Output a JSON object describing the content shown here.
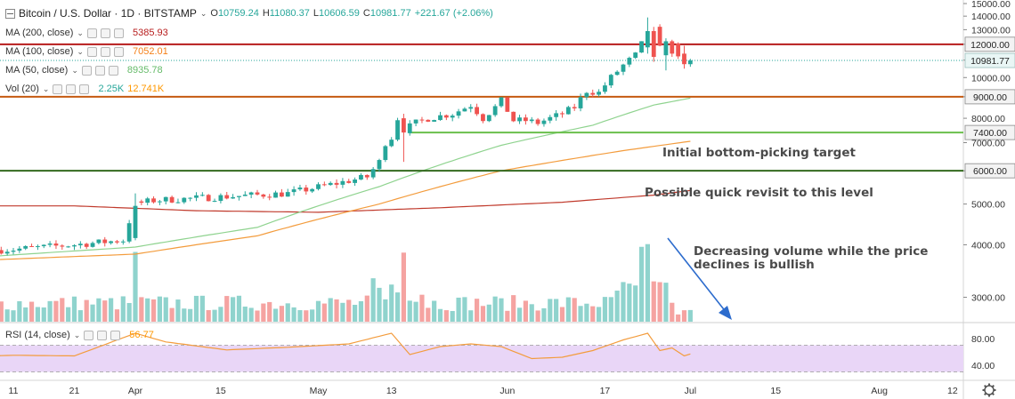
{
  "header": {
    "symbol": "Bitcoin / U.S. Dollar · 1D · BITSTAMP",
    "chevron": "⌄",
    "ohlc": {
      "open_label": "O",
      "open": "10759.24",
      "high_label": "H",
      "high": "11080.37",
      "low_label": "L",
      "low": "10606.59",
      "close_label": "C",
      "close": "10981.77",
      "change": "+221.67 (+2.06%)"
    }
  },
  "indicators": [
    {
      "label": "MA (200, close)",
      "value": "5385.93",
      "color": "#b71c1c"
    },
    {
      "label": "MA (100, close)",
      "value": "7052.01",
      "color": "#f57f17"
    },
    {
      "label": "MA (50, close)",
      "value": "8935.78",
      "color": "#66bb6a"
    }
  ],
  "volume_legend": {
    "label": "Vol (20)",
    "value1": "2.25K",
    "value1_color": "#26a69a",
    "value2": "12.741K",
    "value2_color": "#ff9800"
  },
  "rsi_legend": {
    "label": "RSI (14, close)",
    "value": "56.77",
    "color": "#ff9800"
  },
  "annotations": {
    "target_9000": "Initial bottom-picking target",
    "revisit_7400": "Possible quick revisit to this level",
    "volume_note": "Decreasing volume while the price declines is bullish"
  },
  "colors": {
    "up": "#26a69a",
    "down": "#ef5350",
    "vol_up": "#8fd3cd",
    "vol_down": "#f5a3a1",
    "line_12000": "#b71c1c",
    "line_9000": "#c55a11",
    "line_7400": "#6abf4b",
    "line_6000": "#33691e",
    "last_price": "#26a69a",
    "arrow": "#2d6ccd",
    "rsi_band": "#e9d6f7"
  },
  "chart_data": {
    "type": "candlestick",
    "y_axis": {
      "ticks": [
        "15000.00",
        "14000.00",
        "13000.00",
        "12000.00",
        "11000.00",
        "10000.00",
        "9000.00",
        "8000.00",
        "7000.00",
        "6000.00",
        "5000.00",
        "4000.00",
        "3000.00"
      ],
      "range": [
        2650,
        15000
      ],
      "scale": "log"
    },
    "x_axis": {
      "ticks": [
        "11",
        "21",
        "Apr",
        "15",
        "May",
        "13",
        "Jun",
        "17",
        "Jul",
        "15",
        "Aug",
        "12"
      ],
      "tick_days": [
        -20,
        -10,
        0,
        14,
        30,
        42,
        61,
        77,
        91,
        105,
        122,
        134
      ]
    },
    "levels": [
      {
        "value": 12000,
        "label": "12000.00",
        "role": "line_12000"
      },
      {
        "value": 9000,
        "label": "9000.00",
        "role": "line_9000"
      },
      {
        "value": 7400,
        "label": "7400.00",
        "role": "line_7400"
      },
      {
        "value": 6000,
        "label": "6000.00",
        "role": "line_6000"
      }
    ],
    "last_price": {
      "value": 10981.77,
      "label": "10981.77"
    },
    "price_path": [
      [
        -30,
        3850
      ],
      [
        -20,
        3900
      ],
      [
        -10,
        4000
      ],
      [
        -2,
        4100
      ],
      [
        0,
        5000
      ],
      [
        3,
        5100
      ],
      [
        14,
        5200
      ],
      [
        25,
        5300
      ],
      [
        33,
        5600
      ],
      [
        38,
        5800
      ],
      [
        40,
        6300
      ],
      [
        41,
        7000
      ],
      [
        42,
        7200
      ],
      [
        43,
        8000
      ],
      [
        44,
        7500
      ],
      [
        46,
        7800
      ],
      [
        48,
        8000
      ],
      [
        52,
        8200
      ],
      [
        55,
        8600
      ],
      [
        57,
        8000
      ],
      [
        59,
        8500
      ],
      [
        60,
        8800
      ],
      [
        62,
        7900
      ],
      [
        64,
        7900
      ],
      [
        66,
        7800
      ],
      [
        68,
        8000
      ],
      [
        70,
        8200
      ],
      [
        72,
        8500
      ],
      [
        74,
        9300
      ],
      [
        76,
        9200
      ],
      [
        78,
        10000
      ],
      [
        80,
        10700
      ],
      [
        82,
        11300
      ],
      [
        84,
        12700
      ],
      [
        85,
        13000
      ],
      [
        86,
        11700
      ],
      [
        87,
        12400
      ],
      [
        88,
        11900
      ],
      [
        89,
        11400
      ],
      [
        90,
        10700
      ],
      [
        91,
        10982
      ]
    ],
    "highlight_candles": [
      {
        "day": 0,
        "open": 4150,
        "high": 5300,
        "low": 4100,
        "close": 4950
      },
      {
        "day": 44,
        "open": 8000,
        "high": 8200,
        "low": 6300,
        "close": 7400
      },
      {
        "day": 84,
        "open": 11800,
        "high": 13900,
        "low": 11400,
        "close": 12900
      },
      {
        "day": 85,
        "open": 12900,
        "high": 13200,
        "low": 10900,
        "close": 11200
      },
      {
        "day": 87,
        "open": 11300,
        "high": 12400,
        "low": 10400,
        "close": 12200
      },
      {
        "day": 88,
        "open": 12200,
        "high": 12300,
        "low": 11200,
        "close": 11400
      },
      {
        "day": 90,
        "open": 11400,
        "high": 11900,
        "low": 10500,
        "close": 10760
      },
      {
        "day": 91,
        "open": 10759.24,
        "high": 11080.37,
        "low": 10606.59,
        "close": 10981.77
      }
    ],
    "ma_paths": {
      "ma200": [
        [
          -30,
          4950
        ],
        [
          -10,
          4950
        ],
        [
          10,
          4820
        ],
        [
          30,
          4780
        ],
        [
          50,
          4900
        ],
        [
          70,
          5050
        ],
        [
          85,
          5250
        ],
        [
          91,
          5386
        ]
      ],
      "ma100": [
        [
          -30,
          3650
        ],
        [
          0,
          3800
        ],
        [
          20,
          4200
        ],
        [
          40,
          5000
        ],
        [
          60,
          6000
        ],
        [
          80,
          6700
        ],
        [
          91,
          7052
        ]
      ],
      "ma50": [
        [
          -30,
          3700
        ],
        [
          0,
          3950
        ],
        [
          20,
          4400
        ],
        [
          40,
          5500
        ],
        [
          60,
          6900
        ],
        [
          75,
          7700
        ],
        [
          85,
          8600
        ],
        [
          91,
          8936
        ]
      ]
    },
    "volume_peak_days": [
      0,
      44,
      83,
      84
    ],
    "rsi": {
      "ticks": [
        "80.00",
        "40.00"
      ],
      "band": [
        30,
        70
      ],
      "range": [
        20,
        100
      ],
      "path": [
        [
          -30,
          52
        ],
        [
          -20,
          55
        ],
        [
          -10,
          54
        ],
        [
          0,
          88
        ],
        [
          5,
          75
        ],
        [
          15,
          63
        ],
        [
          25,
          67
        ],
        [
          35,
          72
        ],
        [
          42,
          88
        ],
        [
          45,
          56
        ],
        [
          50,
          68
        ],
        [
          55,
          72
        ],
        [
          60,
          68
        ],
        [
          65,
          50
        ],
        [
          70,
          52
        ],
        [
          75,
          62
        ],
        [
          80,
          78
        ],
        [
          84,
          88
        ],
        [
          86,
          62
        ],
        [
          88,
          66
        ],
        [
          90,
          54
        ],
        [
          91,
          57
        ]
      ]
    }
  }
}
